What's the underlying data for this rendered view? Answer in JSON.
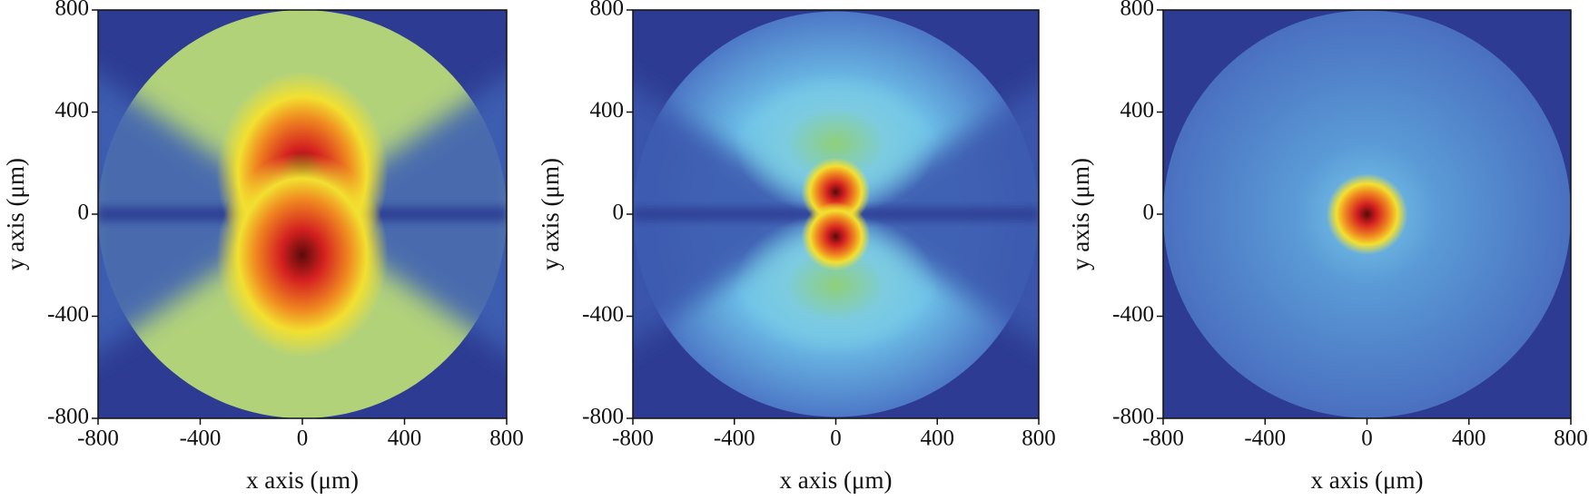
{
  "chart_data": [
    {
      "type": "heatmap",
      "xlabel": "x axis (μm)",
      "ylabel": "y axis (μm)",
      "xlim": [
        -800,
        800
      ],
      "ylim": [
        -800,
        800
      ],
      "xticks": [
        -800,
        -400,
        0,
        400,
        800
      ],
      "yticks": [
        -800,
        -400,
        0,
        400,
        800
      ]
    },
    {
      "type": "heatmap",
      "xlabel": "x axis (μm)",
      "ylabel": "y axis (μm)",
      "xlim": [
        -800,
        800
      ],
      "ylim": [
        -800,
        800
      ],
      "xticks": [
        -800,
        -400,
        0,
        400,
        800
      ],
      "yticks": [
        -800,
        -400,
        0,
        400,
        800
      ]
    },
    {
      "type": "heatmap",
      "xlabel": "x axis (μm)",
      "ylabel": "y axis (μm)",
      "xlim": [
        -800,
        800
      ],
      "ylim": [
        -800,
        800
      ],
      "xticks": [
        -800,
        -400,
        0,
        400,
        800
      ],
      "yticks": [
        -800,
        -400,
        0,
        400,
        800
      ]
    }
  ]
}
